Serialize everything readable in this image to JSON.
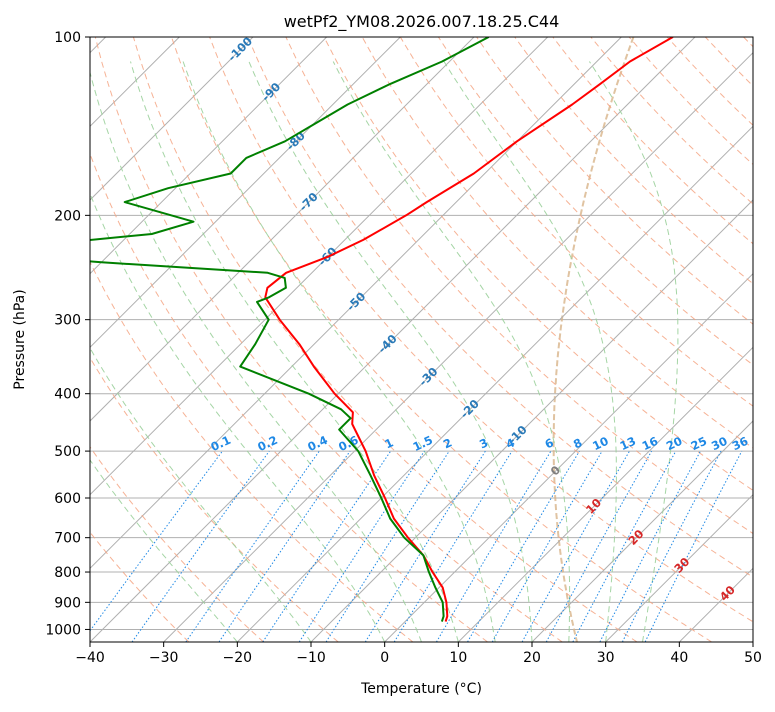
{
  "chart_data": {
    "type": "line",
    "subtype": "skew-T log-P diagram",
    "title": "wetPf2_YM08.2026.007.18.25.C44",
    "xlabel": "Temperature (°C)",
    "ylabel": "Pressure (hPa)",
    "xlim": [
      -40,
      50
    ],
    "ylim": [
      1050,
      100
    ],
    "yscale": "log",
    "grid": true,
    "x_ticks": [
      "−40",
      "−30",
      "−20",
      "−10",
      "0",
      "10",
      "20",
      "30",
      "40",
      "50"
    ],
    "y_ticks": [
      "100",
      "200",
      "300",
      "400",
      "500",
      "600",
      "700",
      "800",
      "900",
      "1000"
    ],
    "series": [
      {
        "role": "temperature",
        "color": "#ff0000",
        "points": [
          [
            100,
            -43.0
          ],
          [
            110,
            -45.5
          ],
          [
            120,
            -46.5
          ],
          [
            130,
            -47.5
          ],
          [
            150,
            -50.0
          ],
          [
            170,
            -51.5
          ],
          [
            190,
            -54.0
          ],
          [
            200,
            -55.0
          ],
          [
            220,
            -57.5
          ],
          [
            235,
            -60.0
          ],
          [
            250,
            -63.5
          ],
          [
            265,
            -64.0
          ],
          [
            275,
            -63.0
          ],
          [
            300,
            -58.0
          ],
          [
            330,
            -52.0
          ],
          [
            360,
            -47.0
          ],
          [
            400,
            -40.5
          ],
          [
            430,
            -35.5
          ],
          [
            450,
            -34.0
          ],
          [
            500,
            -28.5
          ],
          [
            550,
            -24.0
          ],
          [
            600,
            -19.5
          ],
          [
            650,
            -15.5
          ],
          [
            700,
            -11.0
          ],
          [
            750,
            -6.5
          ],
          [
            800,
            -3.0
          ],
          [
            850,
            0.5
          ],
          [
            900,
            3.0
          ],
          [
            950,
            5.0
          ],
          [
            970,
            5.5
          ]
        ]
      },
      {
        "role": "dewpoint",
        "color": "#008000",
        "points": [
          [
            100,
            -68.0
          ],
          [
            110,
            -71.0
          ],
          [
            120,
            -75.0
          ],
          [
            130,
            -78.0
          ],
          [
            150,
            -81.5
          ],
          [
            160,
            -84.5
          ],
          [
            170,
            -84.5
          ],
          [
            180,
            -91.0
          ],
          [
            190,
            -95.0
          ],
          [
            205,
            -83.0
          ],
          [
            215,
            -87.0
          ],
          [
            230,
            -109.0
          ],
          [
            240,
            -90.0
          ],
          [
            250,
            -66.0
          ],
          [
            255,
            -63.0
          ],
          [
            265,
            -61.5
          ],
          [
            275,
            -62.5
          ],
          [
            280,
            -63.5
          ],
          [
            300,
            -59.5
          ],
          [
            330,
            -58.0
          ],
          [
            360,
            -57.0
          ],
          [
            400,
            -44.0
          ],
          [
            425,
            -37.5
          ],
          [
            440,
            -35.0
          ],
          [
            460,
            -35.0
          ],
          [
            500,
            -29.5
          ],
          [
            550,
            -24.5
          ],
          [
            600,
            -20.0
          ],
          [
            650,
            -16.0
          ],
          [
            700,
            -11.5
          ],
          [
            750,
            -6.5
          ],
          [
            800,
            -3.5
          ],
          [
            850,
            -0.5
          ],
          [
            900,
            2.5
          ],
          [
            950,
            4.5
          ],
          [
            970,
            5.0
          ]
        ]
      }
    ],
    "dry_adiabats_C": [
      -30,
      -20,
      -10,
      0,
      10,
      20,
      30,
      40,
      50,
      60,
      70,
      80,
      90,
      100,
      110,
      120,
      130,
      140,
      150,
      160,
      170,
      180,
      190,
      200
    ],
    "moist_adiabats_C": [
      -20,
      -10,
      0,
      5,
      10,
      15,
      20,
      25,
      30,
      35
    ],
    "mixing_ratio_gkg": [
      "0.1",
      "0.2",
      "0.4",
      "0.6",
      "1",
      "1.5",
      "2",
      "3",
      "4",
      "6",
      "8",
      "10",
      "13",
      "16",
      "20",
      "25",
      "30",
      "36"
    ],
    "temperature_labels_blue": [
      "-100",
      "-90",
      "-80",
      "-70",
      "-60",
      "-50",
      "-40",
      "-30",
      "-20",
      "-10"
    ],
    "temperature_labels_grey": [
      "0"
    ],
    "temperature_labels_red": [
      "10",
      "20",
      "30",
      "40"
    ],
    "colors": {
      "temperature": "#ff0000",
      "dewpoint": "#008000",
      "skew_isotherms": "#b0b0b0",
      "dry_adiabats": "#f4a582",
      "moist_adiabats": "#9bd09b",
      "mixing_ratio": "#1e88e5",
      "label_cold": "#2a7ab8",
      "label_zero": "#808080",
      "label_warm": "#d62728",
      "curved_isotherms": "#d8b48a"
    }
  }
}
